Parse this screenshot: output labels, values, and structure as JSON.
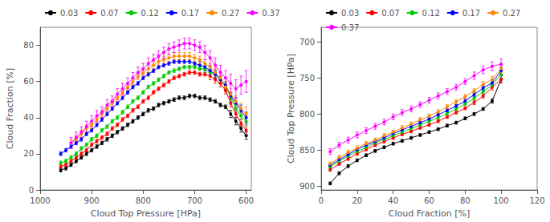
{
  "chart_data": [
    {
      "type": "line",
      "xlabel": "Cloud Top Pressure [HPa]",
      "ylabel": "Cloud Fraction [%]",
      "xlim": [
        1000,
        590
      ],
      "ylim": [
        0,
        90
      ],
      "xticks": [
        1000,
        900,
        800,
        700,
        600
      ],
      "yticks": [
        0,
        20,
        40,
        60,
        80
      ],
      "grid": false,
      "legend": "top",
      "marker": "circle",
      "series": [
        {
          "name": "0.03",
          "color": "#000000",
          "x": [
            960,
            950,
            940,
            930,
            920,
            910,
            900,
            890,
            880,
            870,
            860,
            850,
            840,
            830,
            820,
            810,
            800,
            790,
            780,
            770,
            760,
            750,
            740,
            730,
            720,
            710,
            700,
            690,
            680,
            670,
            660,
            650,
            640,
            630,
            620,
            610,
            600
          ],
          "values": [
            11,
            12,
            14,
            16,
            18,
            20,
            22,
            24,
            26,
            28,
            30,
            32,
            34,
            36,
            38,
            40,
            42,
            44,
            45,
            47,
            48,
            49,
            50,
            51,
            51,
            52,
            52,
            51,
            51,
            50,
            49,
            47,
            46,
            42,
            38,
            34,
            30
          ],
          "yerr": [
            1,
            1,
            1,
            1,
            1,
            1,
            1,
            1,
            1,
            1,
            1,
            1,
            1,
            1,
            1,
            1,
            1,
            1,
            1,
            1,
            1,
            1,
            1,
            1,
            1,
            1,
            1,
            1,
            1,
            1,
            1,
            1,
            1,
            2,
            2,
            2,
            2
          ]
        },
        {
          "name": "0.07",
          "color": "#ff0000",
          "x": [
            960,
            950,
            940,
            930,
            920,
            910,
            900,
            890,
            880,
            870,
            860,
            850,
            840,
            830,
            820,
            810,
            800,
            790,
            780,
            770,
            760,
            750,
            740,
            730,
            720,
            710,
            700,
            690,
            680,
            670,
            660,
            650,
            640,
            630,
            620,
            610,
            600
          ],
          "values": [
            13,
            14,
            16,
            18,
            20,
            22,
            25,
            27,
            29,
            31,
            34,
            36,
            39,
            41,
            44,
            46,
            49,
            51,
            54,
            56,
            58,
            60,
            62,
            63,
            64,
            65,
            65,
            64,
            64,
            63,
            61,
            59,
            55,
            48,
            42,
            37,
            33
          ],
          "yerr": [
            1,
            1,
            1,
            1,
            1,
            1,
            1,
            1,
            1,
            1,
            1,
            1,
            1,
            1,
            1,
            1,
            1,
            1,
            1,
            1,
            1,
            1,
            1,
            1,
            1,
            1,
            1,
            1,
            1,
            2,
            2,
            2,
            2,
            2,
            2,
            2,
            3
          ]
        },
        {
          "name": "0.12",
          "color": "#00cc00",
          "x": [
            960,
            950,
            940,
            930,
            920,
            910,
            900,
            890,
            880,
            870,
            860,
            850,
            840,
            830,
            820,
            810,
            800,
            790,
            780,
            770,
            760,
            750,
            740,
            730,
            720,
            710,
            700,
            690,
            680,
            670,
            660,
            650,
            640,
            630,
            620,
            610,
            600
          ],
          "values": [
            15,
            16,
            18,
            20,
            23,
            25,
            28,
            30,
            33,
            35,
            38,
            40,
            43,
            46,
            49,
            51,
            54,
            57,
            59,
            61,
            63,
            65,
            66,
            67,
            68,
            68,
            68,
            67,
            67,
            65,
            64,
            61,
            57,
            51,
            45,
            41,
            38
          ],
          "yerr": [
            1,
            1,
            1,
            1,
            1,
            1,
            1,
            1,
            1,
            1,
            1,
            1,
            1,
            1,
            1,
            1,
            1,
            1,
            1,
            1,
            1,
            1,
            1,
            1,
            1,
            1,
            1,
            1,
            2,
            2,
            2,
            2,
            2,
            2,
            2,
            2,
            3
          ]
        },
        {
          "name": "0.17",
          "color": "#0000ff",
          "x": [
            960,
            950,
            940,
            930,
            920,
            910,
            900,
            890,
            880,
            870,
            860,
            850,
            840,
            830,
            820,
            810,
            800,
            790,
            780,
            770,
            760,
            750,
            740,
            730,
            720,
            710,
            700,
            690,
            680,
            670,
            660,
            650,
            640,
            630,
            620,
            610,
            600
          ],
          "values": [
            20,
            22,
            24,
            26,
            28,
            31,
            33,
            36,
            39,
            42,
            45,
            48,
            51,
            54,
            57,
            59,
            62,
            64,
            66,
            68,
            69,
            70,
            71,
            71,
            71,
            71,
            70,
            69,
            68,
            66,
            64,
            61,
            58,
            52,
            48,
            44,
            40
          ],
          "yerr": [
            1,
            1,
            1,
            1,
            1,
            1,
            1,
            1,
            1,
            1,
            1,
            1,
            1,
            1,
            1,
            1,
            1,
            1,
            1,
            1,
            1,
            1,
            1,
            1,
            1,
            1,
            1,
            2,
            2,
            2,
            2,
            2,
            2,
            2,
            3,
            3,
            3
          ]
        },
        {
          "name": "0.27",
          "color": "#ff8800",
          "x": [
            940,
            930,
            920,
            910,
            900,
            890,
            880,
            870,
            860,
            850,
            840,
            830,
            820,
            810,
            800,
            790,
            780,
            770,
            760,
            750,
            740,
            730,
            720,
            710,
            700,
            690,
            680,
            670,
            660,
            650,
            640,
            630,
            620,
            610,
            600
          ],
          "values": [
            26,
            28,
            31,
            34,
            36,
            39,
            42,
            45,
            48,
            51,
            54,
            57,
            60,
            63,
            65,
            67,
            69,
            71,
            72,
            73,
            74,
            74,
            74,
            74,
            73,
            72,
            70,
            68,
            65,
            62,
            57,
            53,
            49,
            45,
            42
          ],
          "yerr": [
            2,
            2,
            2,
            2,
            2,
            2,
            2,
            2,
            2,
            2,
            2,
            2,
            2,
            2,
            2,
            2,
            2,
            2,
            2,
            2,
            2,
            2,
            2,
            2,
            2,
            2,
            2,
            2,
            2,
            3,
            3,
            3,
            3,
            3,
            4
          ]
        },
        {
          "name": "0.37",
          "color": "#ff00ff",
          "x": [
            940,
            930,
            920,
            910,
            900,
            890,
            880,
            870,
            860,
            850,
            840,
            830,
            820,
            810,
            800,
            790,
            780,
            770,
            760,
            750,
            740,
            730,
            720,
            710,
            700,
            690,
            680,
            670,
            660,
            650,
            640,
            630,
            620,
            610,
            600
          ],
          "values": [
            26,
            29,
            32,
            35,
            38,
            41,
            43,
            47,
            49,
            53,
            56,
            59,
            62,
            65,
            67,
            70,
            72,
            74,
            76,
            78,
            79,
            80,
            81,
            81,
            80,
            79,
            76,
            73,
            69,
            65,
            62,
            59,
            56,
            58,
            60
          ],
          "yerr": [
            3,
            3,
            3,
            3,
            3,
            3,
            3,
            3,
            3,
            3,
            3,
            3,
            3,
            3,
            3,
            3,
            3,
            3,
            3,
            3,
            3,
            3,
            3,
            3,
            3,
            3,
            4,
            4,
            4,
            4,
            4,
            5,
            5,
            5,
            6
          ]
        }
      ]
    },
    {
      "type": "line",
      "xlabel": "Cloud Fraction [%]",
      "ylabel": "Cloud Top Pressure [HPa]",
      "xlim": [
        0,
        120
      ],
      "ylim": [
        905,
        680
      ],
      "xticks": [
        0,
        20,
        40,
        60,
        80,
        100,
        120
      ],
      "yticks": [
        700,
        750,
        800,
        850,
        900
      ],
      "grid": false,
      "legend": "top",
      "marker": "circle",
      "series": [
        {
          "name": "0.03",
          "color": "#000000",
          "x": [
            5,
            10,
            15,
            20,
            25,
            30,
            35,
            40,
            45,
            50,
            55,
            60,
            65,
            70,
            75,
            80,
            85,
            90,
            95,
            100
          ],
          "values": [
            896,
            882,
            872,
            864,
            857,
            851,
            846,
            841,
            837,
            833,
            829,
            825,
            821,
            816,
            812,
            806,
            800,
            793,
            782,
            752
          ],
          "yerr": [
            2,
            2,
            2,
            2,
            2,
            2,
            2,
            2,
            2,
            2,
            2,
            2,
            2,
            2,
            2,
            2,
            2,
            2,
            3,
            5
          ]
        },
        {
          "name": "0.07",
          "color": "#ff0000",
          "x": [
            5,
            10,
            15,
            20,
            25,
            30,
            35,
            40,
            45,
            50,
            55,
            60,
            65,
            70,
            75,
            80,
            85,
            90,
            95,
            100
          ],
          "values": [
            877,
            869,
            862,
            855,
            849,
            843,
            838,
            833,
            828,
            824,
            819,
            815,
            810,
            804,
            798,
            792,
            784,
            775,
            763,
            752
          ],
          "yerr": [
            2,
            2,
            2,
            2,
            2,
            2,
            2,
            2,
            2,
            2,
            2,
            2,
            2,
            2,
            2,
            2,
            3,
            3,
            4,
            5
          ]
        },
        {
          "name": "0.12",
          "color": "#00cc00",
          "x": [
            5,
            10,
            15,
            20,
            25,
            30,
            35,
            40,
            45,
            50,
            55,
            60,
            65,
            70,
            75,
            80,
            85,
            90,
            95,
            100
          ],
          "values": [
            873,
            865,
            858,
            852,
            846,
            840,
            835,
            830,
            825,
            820,
            815,
            810,
            805,
            799,
            793,
            786,
            778,
            769,
            760,
            745
          ],
          "yerr": [
            2,
            2,
            2,
            2,
            2,
            2,
            2,
            2,
            2,
            2,
            2,
            2,
            2,
            2,
            2,
            2,
            3,
            3,
            4,
            5
          ]
        },
        {
          "name": "0.17",
          "color": "#0000ff",
          "x": [
            5,
            10,
            15,
            20,
            25,
            30,
            35,
            40,
            45,
            50,
            55,
            60,
            65,
            70,
            75,
            80,
            85,
            90,
            95,
            100
          ],
          "values": [
            871,
            863,
            856,
            849,
            843,
            838,
            833,
            827,
            822,
            817,
            812,
            807,
            801,
            795,
            789,
            782,
            773,
            764,
            757,
            740
          ],
          "yerr": [
            2,
            2,
            2,
            2,
            2,
            2,
            2,
            2,
            2,
            2,
            2,
            2,
            2,
            2,
            2,
            3,
            3,
            3,
            4,
            5
          ]
        },
        {
          "name": "0.27",
          "color": "#ff8800",
          "x": [
            5,
            10,
            15,
            20,
            25,
            30,
            35,
            40,
            45,
            50,
            55,
            60,
            65,
            70,
            75,
            80,
            85,
            90,
            95,
            100
          ],
          "values": [
            869,
            860,
            853,
            847,
            841,
            836,
            830,
            825,
            819,
            814,
            808,
            803,
            797,
            790,
            783,
            776,
            768,
            759,
            752,
            737
          ],
          "yerr": [
            3,
            3,
            3,
            3,
            3,
            3,
            3,
            3,
            3,
            3,
            3,
            3,
            3,
            3,
            3,
            3,
            3,
            4,
            4,
            6
          ]
        },
        {
          "name": "0.37",
          "color": "#ff00ff",
          "x": [
            5,
            10,
            15,
            20,
            25,
            30,
            35,
            40,
            45,
            50,
            55,
            60,
            65,
            70,
            75,
            80,
            85,
            90,
            95,
            100
          ],
          "values": [
            852,
            843,
            836,
            829,
            823,
            817,
            811,
            804,
            798,
            793,
            787,
            781,
            775,
            769,
            763,
            755,
            747,
            739,
            734,
            731
          ],
          "yerr": [
            4,
            4,
            4,
            4,
            4,
            4,
            4,
            4,
            4,
            4,
            4,
            4,
            4,
            4,
            4,
            4,
            5,
            5,
            6,
            7
          ]
        }
      ]
    }
  ]
}
